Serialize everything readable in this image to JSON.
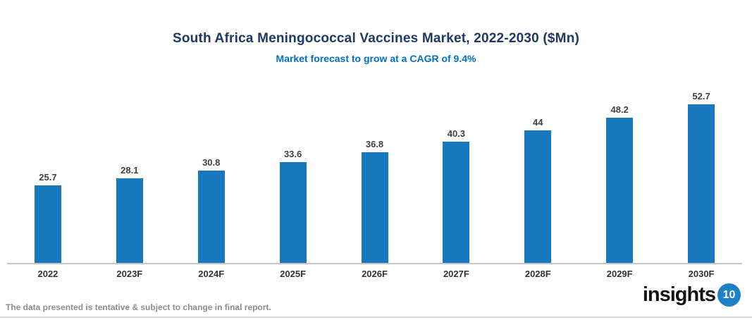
{
  "header": {
    "title": "South Africa Meningococcal Vaccines Market, 2022-2030 ($Mn)",
    "subtitle": "Market forecast to grow at a CAGR of 9.4%"
  },
  "chart_data": {
    "type": "bar",
    "categories": [
      "2022",
      "2023F",
      "2024F",
      "2025F",
      "2026F",
      "2027F",
      "2028F",
      "2029F",
      "2030F"
    ],
    "values": [
      25.7,
      28.1,
      30.8,
      33.6,
      36.8,
      40.3,
      44,
      48.2,
      52.7
    ],
    "title": "South Africa Meningococcal Vaccines Market, 2022-2030 ($Mn)",
    "subtitle": "Market forecast to grow at a CAGR of 9.4%",
    "xlabel": "",
    "ylabel": "",
    "ylim": [
      0,
      55
    ],
    "grid": false,
    "legend": "none",
    "data_labels": true
  },
  "colors": {
    "title": "#1F3864",
    "subtitle": "#0070C0",
    "bar": "#1878BE",
    "axis_line": "#C6C6C6",
    "value_label": "#404040",
    "logo_circle": "#1E81C4"
  },
  "footer": {
    "disclaimer": "The data presented is tentative & subject to change in final report.",
    "logo_text": "insights",
    "logo_number": "10"
  }
}
